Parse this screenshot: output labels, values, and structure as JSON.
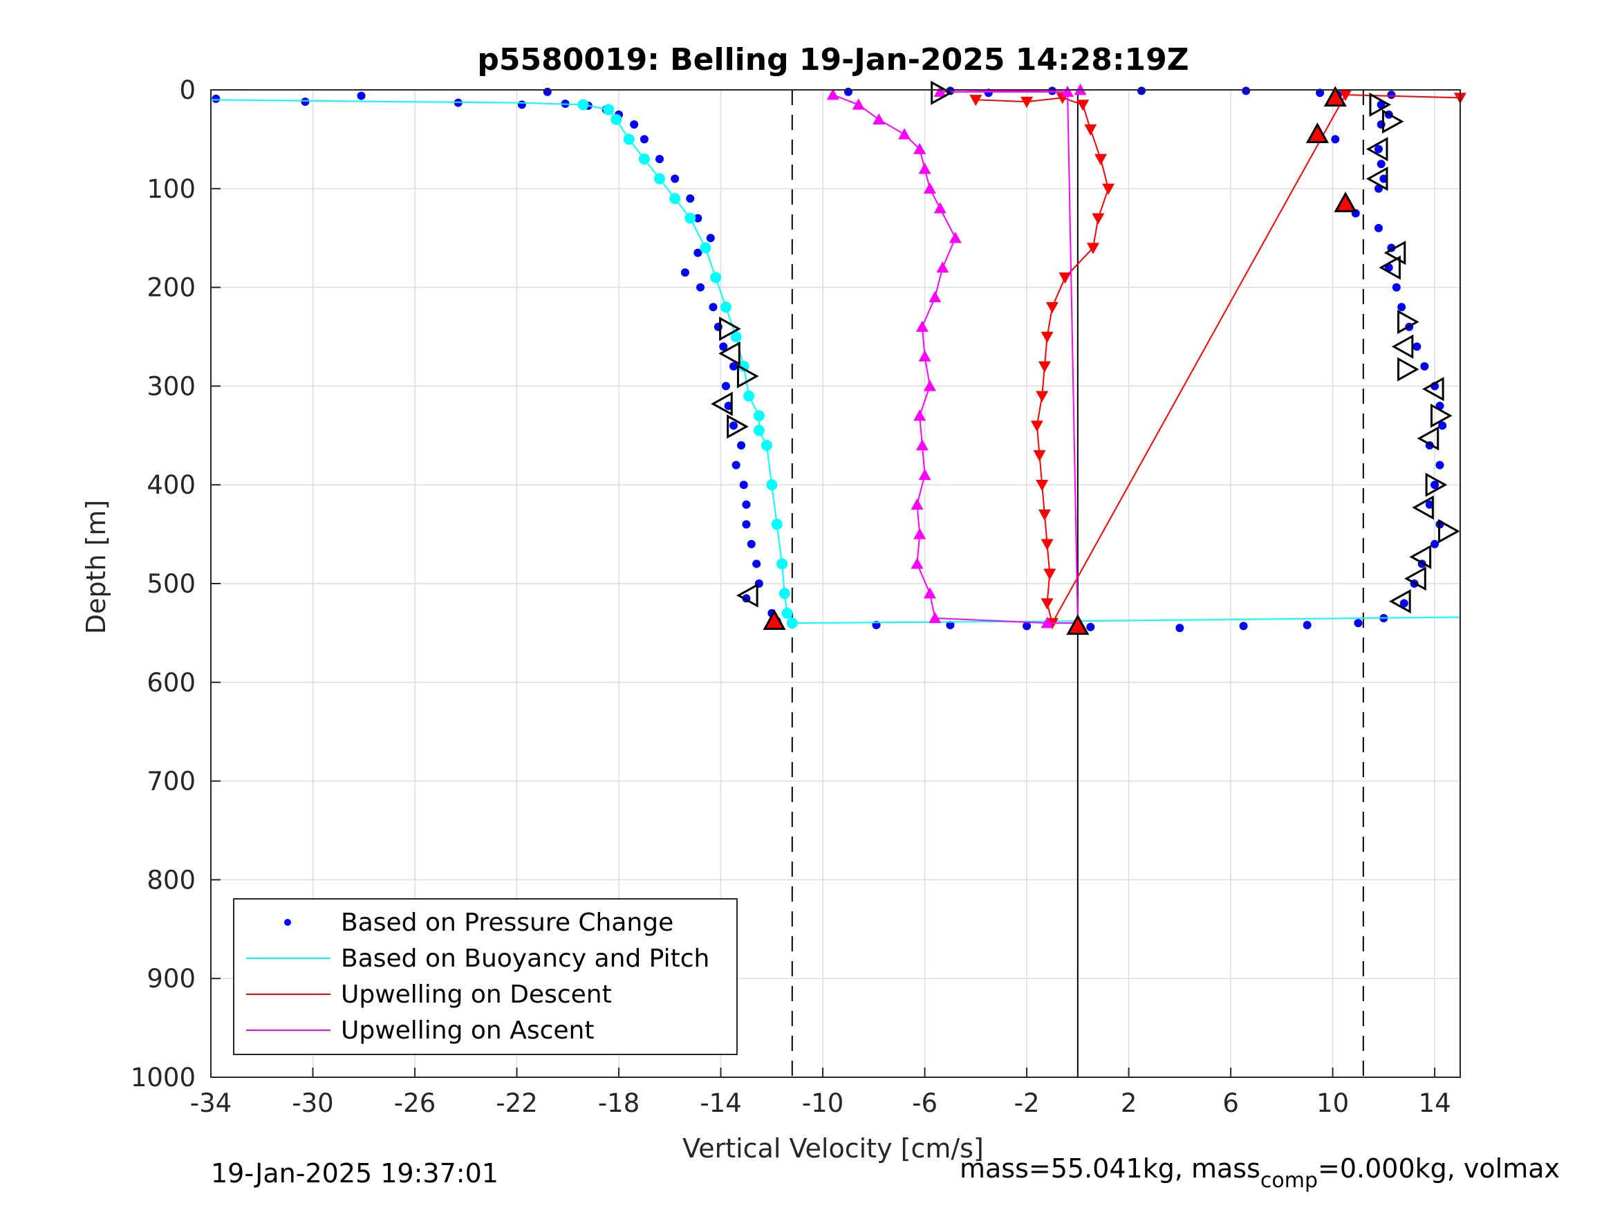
{
  "chart_data": {
    "type": "scatter",
    "title": "p5580019: Belling 19-Jan-2025 14:28:19Z",
    "xlabel": "Vertical Velocity [cm/s]",
    "ylabel": "Depth [m]",
    "xlim": [
      -34,
      15
    ],
    "ylim": [
      0,
      1000
    ],
    "y_reversed": true,
    "grid": true,
    "x_ticks": [
      -34,
      -30,
      -26,
      -22,
      -18,
      -14,
      -10,
      -6,
      -2,
      2,
      6,
      10,
      14
    ],
    "x_tick_labels": [
      "-34",
      "-30",
      "-26",
      "-22",
      "-18",
      "-14",
      "-10",
      "-6",
      "-2",
      "2",
      "6",
      "10",
      "14"
    ],
    "y_ticks": [
      0,
      100,
      200,
      300,
      400,
      500,
      600,
      700,
      800,
      900,
      1000
    ],
    "y_tick_labels": [
      "0",
      "100",
      "200",
      "300",
      "400",
      "500",
      "600",
      "700",
      "800",
      "900",
      "1000"
    ],
    "reference_lines": [
      {
        "x": -11.2,
        "style": "dashed",
        "color": "#000000"
      },
      {
        "x": 11.2,
        "style": "dashed",
        "color": "#000000"
      },
      {
        "x": 0,
        "style": "solid",
        "color": "#000000"
      }
    ],
    "legend": {
      "placement": "bottom-left",
      "entries": [
        {
          "label": "Based on Pressure Change",
          "color": "#0000ff",
          "marker": "dot"
        },
        {
          "label": "Based on Buoyancy and Pitch",
          "color": "#00ffff",
          "marker": "line"
        },
        {
          "label": "Upwelling on Descent",
          "color": "#ff0000",
          "marker": "line"
        },
        {
          "label": "Upwelling on Ascent",
          "color": "#ff00ff",
          "marker": "line"
        }
      ]
    },
    "series": [
      {
        "name": "Based on Pressure Change (descent)",
        "color": "#0000ff",
        "points": [
          [
            -33.8,
            9
          ],
          [
            -30.3,
            12
          ],
          [
            -28.1,
            6
          ],
          [
            -24.3,
            13
          ],
          [
            -20.8,
            2
          ],
          [
            -21.8,
            15
          ],
          [
            -20.1,
            14
          ],
          [
            -19.2,
            16
          ],
          [
            -18.5,
            20
          ],
          [
            -18.0,
            25
          ],
          [
            -17.4,
            35
          ],
          [
            -17.0,
            50
          ],
          [
            -16.4,
            70
          ],
          [
            -15.8,
            90
          ],
          [
            -15.2,
            110
          ],
          [
            -14.9,
            130
          ],
          [
            -14.4,
            150
          ],
          [
            -14.9,
            165
          ],
          [
            -15.4,
            185
          ],
          [
            -14.8,
            200
          ],
          [
            -14.3,
            220
          ],
          [
            -14.1,
            240
          ],
          [
            -13.9,
            260
          ],
          [
            -13.5,
            280
          ],
          [
            -13.8,
            300
          ],
          [
            -13.7,
            320
          ],
          [
            -13.5,
            340
          ],
          [
            -13.2,
            360
          ],
          [
            -13.4,
            380
          ],
          [
            -13.1,
            400
          ],
          [
            -13.0,
            420
          ],
          [
            -13.0,
            440
          ],
          [
            -12.8,
            460
          ],
          [
            -12.6,
            480
          ],
          [
            -12.5,
            500
          ],
          [
            -13.0,
            515
          ],
          [
            -12.0,
            530
          ],
          [
            -11.8,
            538
          ]
        ]
      },
      {
        "name": "Based on Pressure Change (ascent)",
        "color": "#0000ff",
        "points": [
          [
            -7.9,
            542
          ],
          [
            -5.0,
            542
          ],
          [
            -2.0,
            543
          ],
          [
            0.5,
            544
          ],
          [
            4.0,
            545
          ],
          [
            6.5,
            543
          ],
          [
            9.0,
            542
          ],
          [
            11.0,
            540
          ],
          [
            12.0,
            535
          ],
          [
            12.8,
            520
          ],
          [
            13.2,
            500
          ],
          [
            13.5,
            480
          ],
          [
            14.0,
            460
          ],
          [
            14.2,
            440
          ],
          [
            13.8,
            420
          ],
          [
            14.0,
            400
          ],
          [
            14.2,
            380
          ],
          [
            13.8,
            360
          ],
          [
            14.3,
            340
          ],
          [
            14.2,
            320
          ],
          [
            14.0,
            300
          ],
          [
            13.6,
            280
          ],
          [
            13.3,
            260
          ],
          [
            13.0,
            240
          ],
          [
            12.7,
            220
          ],
          [
            12.5,
            200
          ],
          [
            12.2,
            180
          ],
          [
            12.3,
            160
          ],
          [
            11.8,
            140
          ],
          [
            10.9,
            125
          ],
          [
            10.5,
            115
          ],
          [
            11.8,
            100
          ],
          [
            12.0,
            90
          ],
          [
            11.9,
            75
          ],
          [
            11.8,
            60
          ],
          [
            10.1,
            50
          ],
          [
            9.4,
            45
          ],
          [
            11.9,
            35
          ],
          [
            12.2,
            25
          ],
          [
            11.9,
            15
          ],
          [
            12.3,
            5
          ],
          [
            10.2,
            5
          ],
          [
            9.5,
            3
          ],
          [
            6.6,
            1
          ],
          [
            2.5,
            1
          ],
          [
            -1.0,
            1
          ],
          [
            -3.5,
            3
          ],
          [
            -5.0,
            1
          ],
          [
            -9.0,
            2
          ]
        ]
      },
      {
        "name": "Based on Buoyancy and Pitch",
        "color": "#00ffff",
        "points": [
          [
            -34,
            10
          ],
          [
            -26.6,
            12
          ],
          [
            -22.0,
            13
          ],
          [
            -19.4,
            15
          ],
          [
            -18.4,
            20
          ],
          [
            -18.1,
            30
          ],
          [
            -17.6,
            50
          ],
          [
            -17.0,
            70
          ],
          [
            -16.4,
            90
          ],
          [
            -15.8,
            110
          ],
          [
            -15.2,
            130
          ],
          [
            -14.6,
            160
          ],
          [
            -14.2,
            190
          ],
          [
            -13.8,
            220
          ],
          [
            -13.4,
            250
          ],
          [
            -13.1,
            280
          ],
          [
            -12.9,
            310
          ],
          [
            -12.5,
            330
          ],
          [
            -12.5,
            345
          ],
          [
            -12.2,
            360
          ],
          [
            -12.0,
            400
          ],
          [
            -11.8,
            440
          ],
          [
            -11.6,
            480
          ],
          [
            -11.5,
            510
          ],
          [
            -11.4,
            530
          ],
          [
            -11.2,
            540
          ],
          [
            0,
            538
          ],
          [
            15,
            534
          ]
        ]
      },
      {
        "name": "Upwelling on Descent",
        "color": "#ff0000",
        "marker": "triangle-down",
        "points": [
          [
            -4.0,
            10
          ],
          [
            -2.0,
            12
          ],
          [
            -0.6,
            8
          ],
          [
            0.2,
            15
          ],
          [
            0.5,
            40
          ],
          [
            0.9,
            70
          ],
          [
            1.2,
            100
          ],
          [
            0.8,
            130
          ],
          [
            0.6,
            160
          ],
          [
            -0.5,
            190
          ],
          [
            -1.0,
            220
          ],
          [
            -1.2,
            250
          ],
          [
            -1.3,
            280
          ],
          [
            -1.4,
            310
          ],
          [
            -1.6,
            340
          ],
          [
            -1.5,
            370
          ],
          [
            -1.4,
            400
          ],
          [
            -1.3,
            430
          ],
          [
            -1.2,
            460
          ],
          [
            -1.1,
            490
          ],
          [
            -1.2,
            520
          ],
          [
            -1.0,
            540
          ],
          [
            10.5,
            5
          ],
          [
            15,
            8
          ]
        ]
      },
      {
        "name": "Upwelling on Ascent",
        "color": "#ff00ff",
        "marker": "triangle-up",
        "points": [
          [
            -9.6,
            5
          ],
          [
            -8.6,
            15
          ],
          [
            -7.8,
            30
          ],
          [
            -6.8,
            45
          ],
          [
            -6.2,
            60
          ],
          [
            -6.0,
            80
          ],
          [
            -5.8,
            100
          ],
          [
            -5.4,
            120
          ],
          [
            -4.8,
            150
          ],
          [
            -5.3,
            180
          ],
          [
            -5.6,
            210
          ],
          [
            -6.1,
            240
          ],
          [
            -6.0,
            270
          ],
          [
            -5.8,
            300
          ],
          [
            -6.2,
            330
          ],
          [
            -6.1,
            360
          ],
          [
            -6.0,
            390
          ],
          [
            -6.3,
            420
          ],
          [
            -6.2,
            450
          ],
          [
            -6.3,
            480
          ],
          [
            -5.8,
            510
          ],
          [
            -5.6,
            535
          ],
          [
            -1.2,
            540
          ],
          [
            0,
            540
          ],
          [
            -0.4,
            2
          ],
          [
            -5.4,
            2
          ],
          [
            0.1,
            0
          ]
        ]
      }
    ],
    "open_markers": [
      {
        "x": -13.7,
        "y": 242,
        "dir": "right"
      },
      {
        "x": -13.6,
        "y": 267,
        "dir": "left"
      },
      {
        "x": -13.0,
        "y": 290,
        "dir": "right"
      },
      {
        "x": -13.9,
        "y": 318,
        "dir": "left"
      },
      {
        "x": -13.4,
        "y": 341,
        "dir": "right"
      },
      {
        "x": -12.9,
        "y": 512,
        "dir": "left"
      },
      {
        "x": -5.4,
        "y": 3,
        "dir": "right"
      },
      {
        "x": 11.8,
        "y": 15,
        "dir": "right"
      },
      {
        "x": 12.3,
        "y": 32,
        "dir": "right"
      },
      {
        "x": 11.8,
        "y": 60,
        "dir": "left"
      },
      {
        "x": 11.8,
        "y": 90,
        "dir": "left"
      },
      {
        "x": 12.5,
        "y": 165,
        "dir": "left"
      },
      {
        "x": 12.3,
        "y": 180,
        "dir": "left"
      },
      {
        "x": 12.9,
        "y": 235,
        "dir": "right"
      },
      {
        "x": 12.8,
        "y": 260,
        "dir": "left"
      },
      {
        "x": 12.9,
        "y": 283,
        "dir": "right"
      },
      {
        "x": 14.0,
        "y": 303,
        "dir": "left"
      },
      {
        "x": 14.2,
        "y": 330,
        "dir": "right"
      },
      {
        "x": 13.8,
        "y": 353,
        "dir": "left"
      },
      {
        "x": 14.0,
        "y": 400,
        "dir": "right"
      },
      {
        "x": 13.6,
        "y": 423,
        "dir": "left"
      },
      {
        "x": 14.5,
        "y": 447,
        "dir": "right"
      },
      {
        "x": 13.5,
        "y": 473,
        "dir": "left"
      },
      {
        "x": 13.3,
        "y": 495,
        "dir": "left"
      },
      {
        "x": 12.7,
        "y": 518,
        "dir": "left"
      }
    ],
    "filled_markers": [
      {
        "x": -11.9,
        "y": 538
      },
      {
        "x": 0,
        "y": 543
      },
      {
        "x": 10.1,
        "y": 8
      },
      {
        "x": 9.4,
        "y": 45
      },
      {
        "x": 10.5,
        "y": 115
      }
    ]
  },
  "footer": {
    "timestamp": "19-Jan-2025 19:37:01",
    "mass_prefix": "mass=55.041kg, mass",
    "mass_sub": "comp",
    "mass_suffix": "=0.000kg, volmax"
  }
}
